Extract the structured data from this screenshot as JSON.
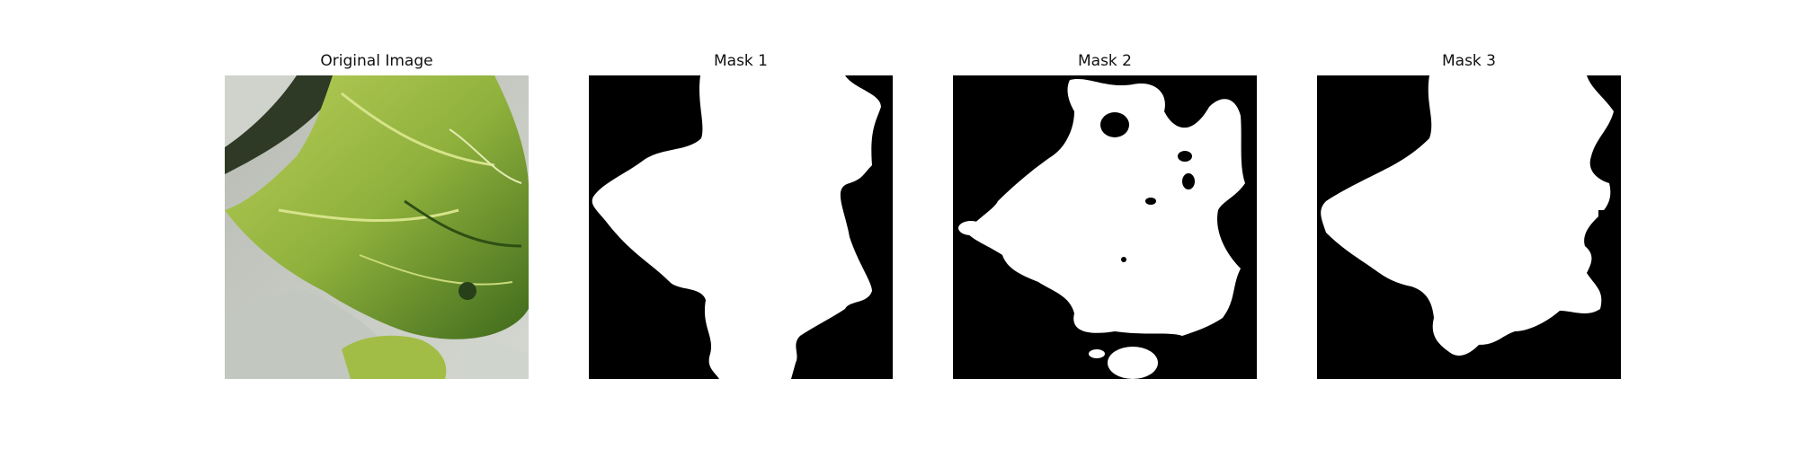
{
  "figure": {
    "panels": [
      {
        "title": "Original Image"
      },
      {
        "title": "Mask 1"
      },
      {
        "title": "Mask 2"
      },
      {
        "title": "Mask 3"
      }
    ]
  },
  "colors": {
    "background": "#ffffff",
    "mask_foreground": "#ffffff",
    "mask_background": "#000000",
    "leaf_light": "#a6c246",
    "leaf_dark": "#557f23",
    "surface": "#c6cac3"
  }
}
